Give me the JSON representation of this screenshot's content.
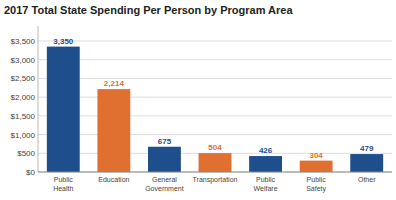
{
  "chart_data": {
    "type": "bar",
    "title": "2017 Total State Spending Per Person by Program Area",
    "categories": [
      "Public\nHealth",
      "Education",
      "General\nGovernment",
      "Transportation",
      "Public\nWelfare",
      "Public\nSafety",
      "Other"
    ],
    "values": [
      3350,
      2214,
      675,
      504,
      426,
      304,
      479
    ],
    "value_labels": [
      "3,350",
      "2,214",
      "675",
      "504",
      "426",
      "304",
      "479"
    ],
    "colors": [
      "#1f4e8c",
      "#e07030",
      "#1f4e8c",
      "#e07030",
      "#1f4e8c",
      "#e07030",
      "#1f4e8c"
    ],
    "data_labels": true,
    "ylim": [
      0,
      3900
    ],
    "yticks": [
      {
        "value": 0,
        "label": "$0"
      },
      {
        "value": 500,
        "label": "$500"
      },
      {
        "value": 1000,
        "label": "$1,000"
      },
      {
        "value": 1500,
        "label": "$1,500"
      },
      {
        "value": 2000,
        "label": "$2,000"
      },
      {
        "value": 2500,
        "label": "$2,500"
      },
      {
        "value": 3000,
        "label": "$3,000"
      },
      {
        "value": 3500,
        "label": "$3,500"
      }
    ],
    "grid": true
  }
}
